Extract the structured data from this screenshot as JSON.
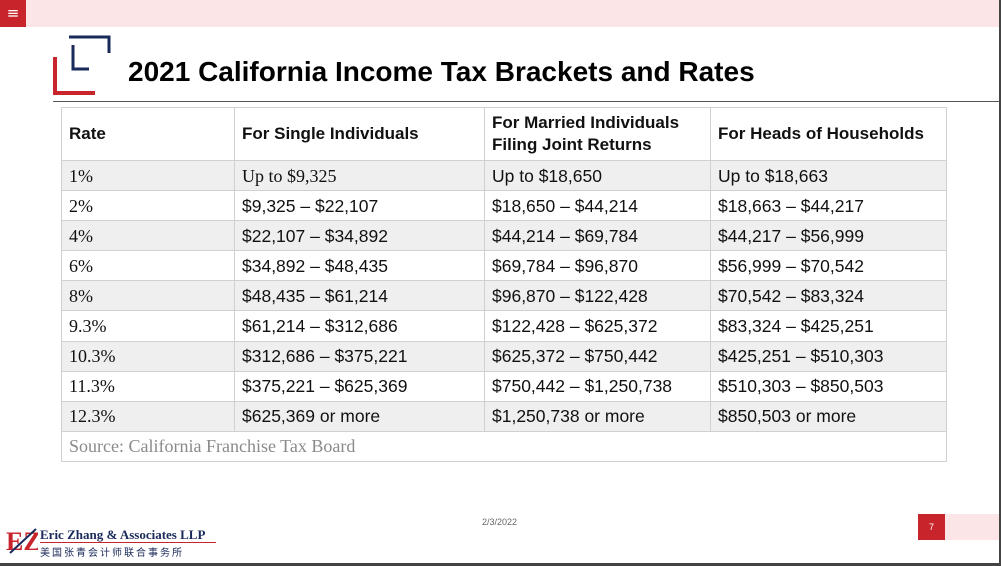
{
  "menu": {
    "icon": "hamburger-menu-icon",
    "glyph": "≡"
  },
  "header": {
    "title": "2021 California Income Tax Brackets and Rates",
    "logo_icon": "bracket-logo-icon"
  },
  "colors": {
    "accent_red": "#c8242b",
    "navy": "#1a2a5a",
    "pink_band": "#fbe5e6",
    "row_shade": "#efefef"
  },
  "table": {
    "headers": [
      "Rate",
      "For Single Individuals",
      "For Married Individuals Filing Joint Returns",
      "For Heads of Households"
    ],
    "rows": [
      [
        "1%",
        "Up to $9,325",
        "Up to $18,650",
        "Up to $18,663"
      ],
      [
        "2%",
        "$9,325 – $22,107",
        "$18,650 – $44,214",
        "$18,663 – $44,217"
      ],
      [
        "4%",
        "$22,107 – $34,892",
        "$44,214 – $69,784",
        "$44,217 – $56,999"
      ],
      [
        "6%",
        "$34,892 – $48,435",
        "$69,784 – $96,870",
        "$56,999 – $70,542"
      ],
      [
        "8%",
        "$48,435 – $61,214",
        "$96,870 – $122,428",
        "$70,542 – $83,324"
      ],
      [
        "9.3%",
        "$61,214 – $312,686",
        "$122,428 – $625,372",
        "$83,324 – $425,251"
      ],
      [
        "10.3%",
        "$312,686 – $375,221",
        "$625,372 – $750,442",
        "$425,251 – $510,303"
      ],
      [
        "11.3%",
        "$375,221 – $625,369",
        "$750,442 – $1,250,738",
        "$510,303 – $850,503"
      ],
      [
        "12.3%",
        "$625,369 or more",
        "$1,250,738 or more",
        "$850,503 or more"
      ]
    ],
    "source": "Source: California Franchise Tax Board"
  },
  "footer": {
    "date": "2/3/2022",
    "page_number": "7",
    "firm_name": "Eric Zhang & Associates LLP",
    "firm_chinese": "美国张青会计师联合事务所",
    "firm_logo_icon": "ez-monogram-icon",
    "firm_logo_text": "EZ"
  }
}
